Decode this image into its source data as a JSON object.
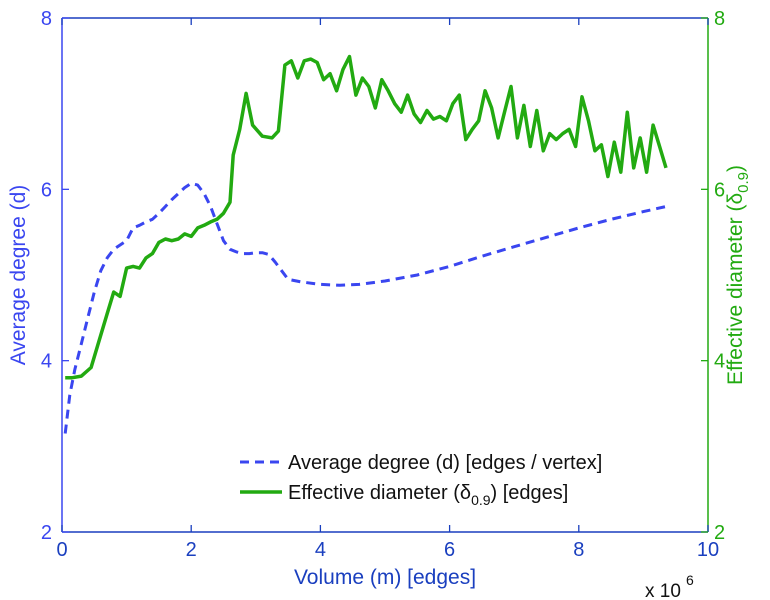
{
  "chart_data": {
    "type": "line",
    "title": "",
    "xlabel": "Volume (m) [edges]",
    "x_exponent_label": "x 10",
    "x_exponent_power": "6",
    "xlim": [
      0,
      10
    ],
    "x_ticks": [
      0,
      2,
      4,
      6,
      8,
      10
    ],
    "y_left": {
      "label": "Average degree (d)",
      "ylim": [
        2,
        8
      ],
      "ticks": [
        2,
        4,
        6,
        8
      ],
      "color": "#3a46f0"
    },
    "y_right": {
      "label_prefix": "Effective diameter (δ",
      "label_subscript": "0.9",
      "label_suffix": ")",
      "ylim": [
        2,
        8
      ],
      "ticks": [
        2,
        4,
        6,
        8
      ],
      "color": "#22aa11"
    },
    "axis_color": "#1a3fbf",
    "series": [
      {
        "name": "Average degree (d) [edges / vertex]",
        "legend_prefix": "Average degree (d) [edges / vertex]",
        "axis": "left",
        "style": "dashed",
        "color": "#3a46f0",
        "x": [
          0.05,
          0.12,
          0.2,
          0.3,
          0.4,
          0.5,
          0.6,
          0.7,
          0.8,
          0.9,
          1.0,
          1.1,
          1.2,
          1.3,
          1.4,
          1.5,
          1.6,
          1.7,
          1.8,
          1.9,
          2.0,
          2.1,
          2.2,
          2.3,
          2.4,
          2.5,
          2.6,
          2.7,
          2.8,
          2.9,
          3.0,
          3.1,
          3.2,
          3.3,
          3.4,
          3.5,
          3.7,
          4.0,
          4.3,
          4.6,
          5.0,
          5.5,
          6.0,
          6.5,
          7.0,
          7.5,
          8.0,
          8.5,
          9.0,
          9.35
        ],
        "y": [
          3.15,
          3.6,
          3.9,
          4.2,
          4.5,
          4.8,
          5.05,
          5.2,
          5.3,
          5.35,
          5.4,
          5.55,
          5.58,
          5.62,
          5.65,
          5.72,
          5.8,
          5.88,
          5.95,
          6.02,
          6.07,
          6.05,
          5.95,
          5.8,
          5.6,
          5.4,
          5.3,
          5.27,
          5.25,
          5.25,
          5.26,
          5.26,
          5.24,
          5.15,
          5.05,
          4.95,
          4.92,
          4.89,
          4.88,
          4.89,
          4.93,
          5.0,
          5.1,
          5.22,
          5.33,
          5.44,
          5.55,
          5.65,
          5.74,
          5.8
        ]
      },
      {
        "name": "Effective diameter (δ0.9) [edges]",
        "legend_prefix": "Effective diameter (δ",
        "legend_subscript": "0.9",
        "legend_suffix": ") [edges]",
        "axis": "right",
        "style": "solid",
        "color": "#22aa11",
        "x": [
          0.05,
          0.15,
          0.3,
          0.45,
          0.6,
          0.7,
          0.8,
          0.9,
          1.0,
          1.1,
          1.2,
          1.3,
          1.4,
          1.5,
          1.6,
          1.7,
          1.8,
          1.9,
          2.0,
          2.1,
          2.2,
          2.3,
          2.4,
          2.5,
          2.6,
          2.65,
          2.75,
          2.85,
          2.95,
          3.1,
          3.25,
          3.35,
          3.45,
          3.55,
          3.65,
          3.75,
          3.85,
          3.95,
          4.05,
          4.15,
          4.25,
          4.35,
          4.45,
          4.55,
          4.65,
          4.75,
          4.85,
          4.95,
          5.05,
          5.15,
          5.25,
          5.35,
          5.45,
          5.55,
          5.65,
          5.75,
          5.85,
          5.95,
          6.05,
          6.15,
          6.25,
          6.35,
          6.45,
          6.55,
          6.65,
          6.75,
          6.85,
          6.95,
          7.05,
          7.15,
          7.25,
          7.35,
          7.45,
          7.55,
          7.65,
          7.75,
          7.85,
          7.95,
          8.05,
          8.15,
          8.25,
          8.35,
          8.45,
          8.55,
          8.65,
          8.75,
          8.85,
          8.95,
          9.05,
          9.15,
          9.25,
          9.35
        ],
        "y": [
          3.8,
          3.8,
          3.82,
          3.92,
          4.3,
          4.55,
          4.8,
          4.75,
          5.08,
          5.1,
          5.08,
          5.2,
          5.25,
          5.38,
          5.42,
          5.4,
          5.42,
          5.48,
          5.45,
          5.55,
          5.58,
          5.62,
          5.65,
          5.72,
          5.85,
          6.4,
          6.7,
          7.12,
          6.75,
          6.62,
          6.6,
          6.68,
          7.45,
          7.5,
          7.3,
          7.5,
          7.52,
          7.48,
          7.28,
          7.35,
          7.15,
          7.4,
          7.55,
          7.1,
          7.3,
          7.2,
          6.95,
          7.28,
          7.15,
          7.0,
          6.9,
          7.1,
          6.88,
          6.78,
          6.92,
          6.82,
          6.85,
          6.8,
          7.0,
          7.1,
          6.58,
          6.7,
          6.8,
          7.15,
          6.95,
          6.6,
          6.9,
          7.2,
          6.6,
          6.98,
          6.5,
          6.92,
          6.45,
          6.65,
          6.58,
          6.65,
          6.7,
          6.5,
          7.08,
          6.8,
          6.45,
          6.52,
          6.15,
          6.55,
          6.2,
          6.9,
          6.25,
          6.6,
          6.2,
          6.75,
          6.5,
          6.25
        ]
      }
    ]
  }
}
